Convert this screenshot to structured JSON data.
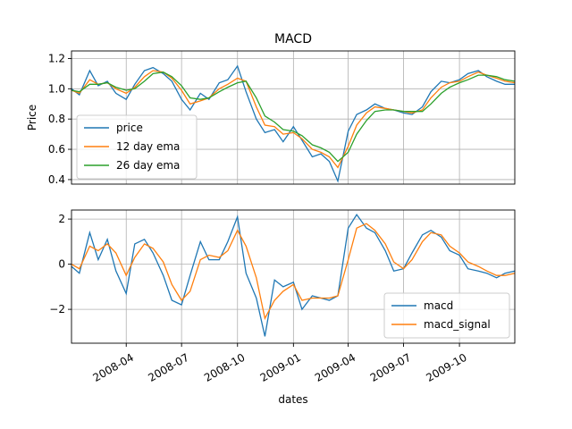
{
  "chart_data": [
    {
      "type": "line",
      "title": "MACD",
      "xlabel": "",
      "ylabel": "Price",
      "ylim": [
        0.37,
        1.25
      ],
      "yticks": [
        "0.4",
        "0.6",
        "0.8",
        "1.0",
        "1.2"
      ],
      "grid": true,
      "legend": "lower-left",
      "x": [
        "2008-01-02",
        "2008-01-15",
        "2008-02-01",
        "2008-02-15",
        "2008-03-01",
        "2008-03-15",
        "2008-04-01",
        "2008-04-15",
        "2008-05-01",
        "2008-05-15",
        "2008-06-01",
        "2008-06-15",
        "2008-07-01",
        "2008-07-15",
        "2008-08-01",
        "2008-08-15",
        "2008-09-01",
        "2008-09-15",
        "2008-10-01",
        "2008-10-15",
        "2008-11-01",
        "2008-11-15",
        "2008-12-01",
        "2008-12-15",
        "2009-01-01",
        "2009-01-15",
        "2009-02-01",
        "2009-02-15",
        "2009-03-01",
        "2009-03-15",
        "2009-04-01",
        "2009-04-15",
        "2009-05-01",
        "2009-05-15",
        "2009-06-01",
        "2009-06-15",
        "2009-07-01",
        "2009-07-15",
        "2009-08-01",
        "2009-08-15",
        "2009-09-01",
        "2009-09-15",
        "2009-10-01",
        "2009-10-15",
        "2009-11-01",
        "2009-11-15",
        "2009-12-01",
        "2009-12-15",
        "2009-12-31"
      ],
      "series": [
        {
          "name": "price",
          "color": "#1f77b4",
          "values": [
            1.0,
            0.96,
            1.12,
            1.02,
            1.05,
            0.97,
            0.93,
            1.03,
            1.12,
            1.14,
            1.1,
            1.05,
            0.93,
            0.86,
            0.97,
            0.93,
            1.04,
            1.06,
            1.15,
            0.98,
            0.8,
            0.71,
            0.73,
            0.65,
            0.75,
            0.66,
            0.55,
            0.57,
            0.52,
            0.39,
            0.72,
            0.83,
            0.86,
            0.9,
            0.87,
            0.86,
            0.84,
            0.83,
            0.88,
            0.98,
            1.05,
            1.04,
            1.06,
            1.1,
            1.12,
            1.08,
            1.05,
            1.03,
            1.03
          ]
        },
        {
          "name": "12 day ema",
          "color": "#ff7f0e",
          "values": [
            0.99,
            0.97,
            1.06,
            1.03,
            1.04,
            1.0,
            0.97,
            1.01,
            1.08,
            1.12,
            1.11,
            1.07,
            0.99,
            0.9,
            0.92,
            0.94,
            1.0,
            1.03,
            1.07,
            1.05,
            0.88,
            0.76,
            0.75,
            0.7,
            0.71,
            0.67,
            0.6,
            0.58,
            0.55,
            0.48,
            0.62,
            0.76,
            0.84,
            0.88,
            0.87,
            0.86,
            0.85,
            0.84,
            0.86,
            0.94,
            1.01,
            1.04,
            1.05,
            1.08,
            1.11,
            1.09,
            1.07,
            1.05,
            1.04
          ]
        },
        {
          "name": "26 day ema",
          "color": "#2ca02c",
          "values": [
            0.99,
            0.98,
            1.03,
            1.03,
            1.04,
            1.01,
            0.99,
            1.0,
            1.05,
            1.1,
            1.11,
            1.08,
            1.02,
            0.94,
            0.93,
            0.94,
            0.98,
            1.01,
            1.04,
            1.05,
            0.94,
            0.82,
            0.78,
            0.73,
            0.72,
            0.69,
            0.63,
            0.61,
            0.58,
            0.52,
            0.58,
            0.7,
            0.79,
            0.85,
            0.86,
            0.86,
            0.85,
            0.85,
            0.85,
            0.9,
            0.97,
            1.01,
            1.04,
            1.06,
            1.09,
            1.09,
            1.08,
            1.06,
            1.05
          ]
        }
      ]
    },
    {
      "type": "line",
      "title": "",
      "xlabel": "dates",
      "ylabel": "",
      "ylim": [
        -3.5,
        2.4
      ],
      "yticks": [
        "−2",
        "0",
        "2"
      ],
      "xticks": [
        "2008-04",
        "2008-07",
        "2008-10",
        "2009-01",
        "2009-04",
        "2009-07",
        "2009-10"
      ],
      "grid": true,
      "legend": "lower-right",
      "x": [
        "2008-01-02",
        "2008-01-15",
        "2008-02-01",
        "2008-02-15",
        "2008-03-01",
        "2008-03-15",
        "2008-04-01",
        "2008-04-15",
        "2008-05-01",
        "2008-05-15",
        "2008-06-01",
        "2008-06-15",
        "2008-07-01",
        "2008-07-15",
        "2008-08-01",
        "2008-08-15",
        "2008-09-01",
        "2008-09-15",
        "2008-10-01",
        "2008-10-15",
        "2008-11-01",
        "2008-11-15",
        "2008-12-01",
        "2008-12-15",
        "2009-01-01",
        "2009-01-15",
        "2009-02-01",
        "2009-02-15",
        "2009-03-01",
        "2009-03-15",
        "2009-04-01",
        "2009-04-15",
        "2009-05-01",
        "2009-05-15",
        "2009-06-01",
        "2009-06-15",
        "2009-07-01",
        "2009-07-15",
        "2009-08-01",
        "2009-08-15",
        "2009-09-01",
        "2009-09-15",
        "2009-10-01",
        "2009-10-15",
        "2009-11-01",
        "2009-11-15",
        "2009-12-01",
        "2009-12-15",
        "2009-12-31"
      ],
      "series": [
        {
          "name": "macd",
          "color": "#1f77b4",
          "values": [
            -0.1,
            -0.4,
            1.4,
            0.2,
            1.1,
            -0.3,
            -1.3,
            0.9,
            1.1,
            0.5,
            -0.5,
            -1.6,
            -1.8,
            -0.5,
            1.0,
            0.2,
            0.2,
            1.0,
            2.1,
            -0.4,
            -1.5,
            -3.2,
            -0.7,
            -1.0,
            -0.8,
            -2.0,
            -1.4,
            -1.5,
            -1.6,
            -1.4,
            1.6,
            2.2,
            1.6,
            1.4,
            0.6,
            -0.3,
            -0.2,
            0.5,
            1.3,
            1.5,
            1.2,
            0.6,
            0.4,
            -0.2,
            -0.3,
            -0.4,
            -0.6,
            -0.4,
            -0.3
          ]
        },
        {
          "name": "macd_signal",
          "color": "#ff7f0e",
          "values": [
            0.0,
            -0.2,
            0.8,
            0.6,
            0.9,
            0.5,
            -0.5,
            0.3,
            0.9,
            0.7,
            0.1,
            -0.9,
            -1.6,
            -1.2,
            0.2,
            0.4,
            0.3,
            0.6,
            1.5,
            0.8,
            -0.6,
            -2.4,
            -1.6,
            -1.2,
            -0.9,
            -1.6,
            -1.5,
            -1.5,
            -1.5,
            -1.4,
            0.2,
            1.6,
            1.8,
            1.5,
            0.9,
            0.1,
            -0.2,
            0.2,
            1.0,
            1.4,
            1.3,
            0.8,
            0.5,
            0.1,
            -0.1,
            -0.3,
            -0.5,
            -0.5,
            -0.4
          ]
        }
      ]
    }
  ]
}
